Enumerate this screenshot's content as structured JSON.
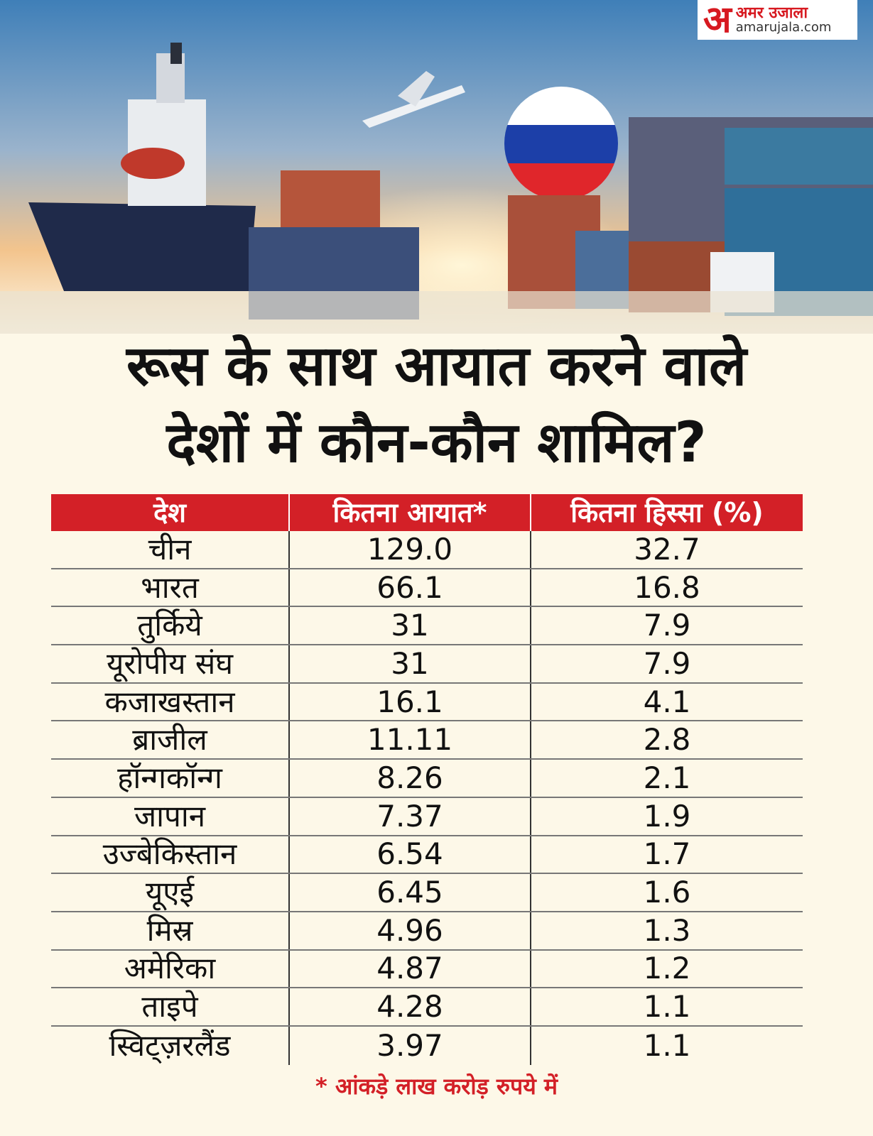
{
  "header": {
    "logo_mark": "अ",
    "logo_name": "अमर उजाला",
    "logo_site": "amarujala.com"
  },
  "title": {
    "line1": "रूस के साथ आयात करने वाले",
    "line2": "देशों में कौन-कौन शामिल?"
  },
  "table": {
    "headers": [
      "देश",
      "कितना आयात*",
      "कितना हिस्सा (%)"
    ],
    "rows": [
      [
        "चीन",
        "129.0",
        "32.7"
      ],
      [
        "भारत",
        "66.1",
        "16.8"
      ],
      [
        "तुर्किये",
        "31",
        "7.9"
      ],
      [
        "यूरोपीय संघ",
        "31",
        "7.9"
      ],
      [
        "कजाखस्तान",
        "16.1",
        "4.1"
      ],
      [
        "ब्राजील",
        "11.11",
        "2.8"
      ],
      [
        "हॉन्गकॉन्ग",
        "8.26",
        "2.1"
      ],
      [
        "जापान",
        "7.37",
        "1.9"
      ],
      [
        "उज्बेकिस्तान",
        "6.54",
        "1.7"
      ],
      [
        "यूएई",
        "6.45",
        "1.6"
      ],
      [
        "मिस्र",
        "4.96",
        "1.3"
      ],
      [
        "अमेरिका",
        "4.87",
        "1.2"
      ],
      [
        "ताइपे",
        "4.28",
        "1.1"
      ],
      [
        "स्विट्ज़रलैंड",
        "3.97",
        "1.1"
      ]
    ]
  },
  "footnote": "* आंकड़े लाख करोड़ रुपये में"
}
